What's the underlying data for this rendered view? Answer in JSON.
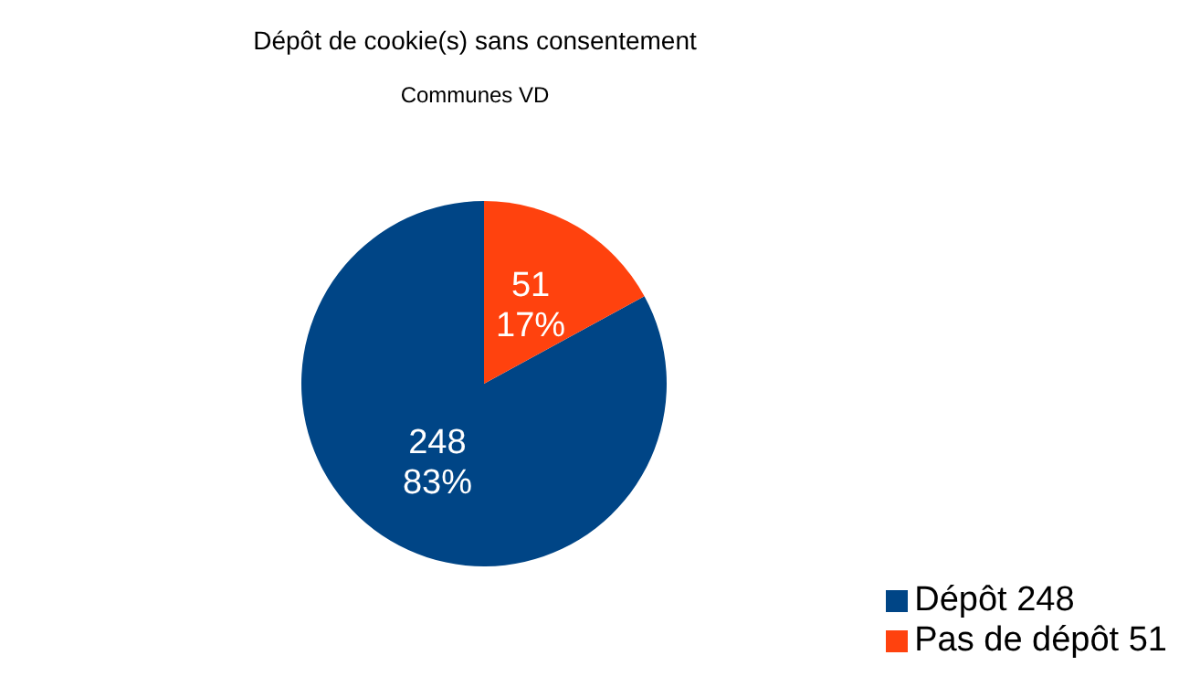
{
  "chart_data": {
    "type": "pie",
    "title": "Dépôt de cookie(s) sans consentement",
    "subtitle": "Communes VD",
    "categories": [
      "Dépôt 248",
      "Pas de dépôt 51"
    ],
    "values": [
      248,
      51
    ],
    "colors": [
      "#004586",
      "#ff420e"
    ],
    "value_labels": [
      "248\n83%",
      "51\n17%"
    ],
    "legend": "bottom right"
  }
}
